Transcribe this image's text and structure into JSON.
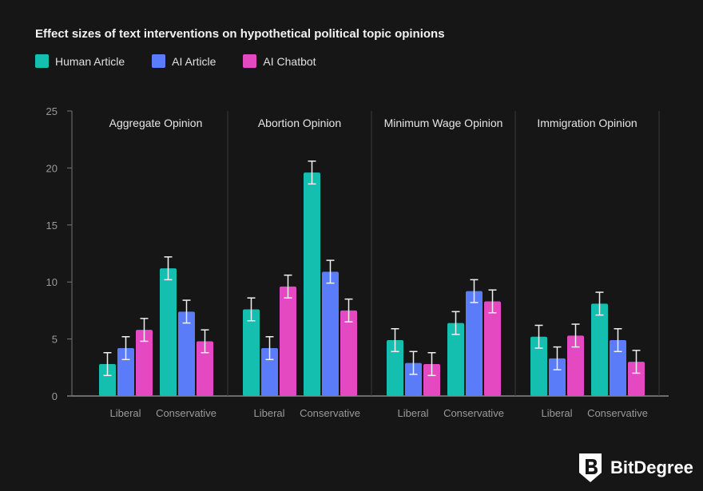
{
  "chart_data": {
    "type": "bar",
    "title": "Effect sizes of text interventions on hypothetical political topic opinions",
    "ylim": [
      0,
      25
    ],
    "yticks": [
      0,
      5,
      10,
      15,
      20,
      25
    ],
    "grid": false,
    "legend_placement": "top-left",
    "series_names": [
      "Human Article",
      "AI Article",
      "AI Chatbot"
    ],
    "colors": [
      "#14bfb0",
      "#5a7cf8",
      "#e549c1"
    ],
    "groups": [
      "Liberal",
      "Conservative"
    ],
    "panels": [
      {
        "title": "Aggregate Opinion",
        "values": {
          "Liberal": [
            2.8,
            4.2,
            5.8
          ],
          "Conservative": [
            11.2,
            7.4,
            4.8
          ]
        }
      },
      {
        "title": "Abortion Opinion",
        "values": {
          "Liberal": [
            7.6,
            4.2,
            9.6
          ],
          "Conservative": [
            19.6,
            10.9,
            7.5
          ]
        }
      },
      {
        "title": "Minimum Wage Opinion",
        "values": {
          "Liberal": [
            4.9,
            2.9,
            2.8
          ],
          "Conservative": [
            6.4,
            9.2,
            8.3
          ]
        }
      },
      {
        "title": "Immigration Opinion",
        "values": {
          "Liberal": [
            5.2,
            3.3,
            5.3
          ],
          "Conservative": [
            8.1,
            4.9,
            3.0
          ]
        }
      }
    ],
    "error_bar": 1.0
  },
  "brand": "BitDegree"
}
